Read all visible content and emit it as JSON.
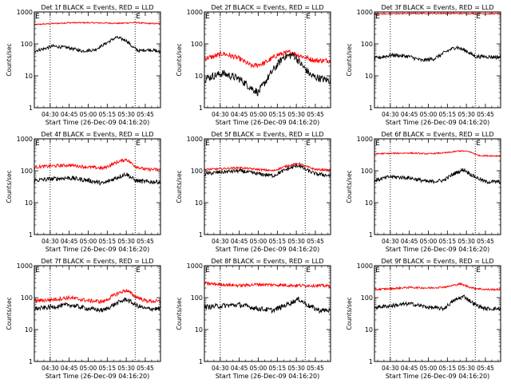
{
  "colors": {
    "events": "#000000",
    "lld": "#ff0000",
    "axis": "#000000",
    "background": "#ffffff"
  },
  "chart_data": [
    {
      "type": "line",
      "title": "Det 1f BLACK = Events, RED = LLD",
      "xlabel": "Start Time (26-Dec-09 04:16:20)",
      "ylabel": "Counts/sec",
      "x_tick_labels": [
        "04:30",
        "04:45",
        "05:00",
        "05:15",
        "05:30",
        "05:45"
      ],
      "x_ticks_min": [
        30,
        45,
        60,
        75,
        90,
        105
      ],
      "xlim_min": [
        17.5,
        117
      ],
      "ylog": true,
      "ylim": [
        1,
        1000
      ],
      "y_tick_labels": [
        "1",
        "10",
        "100",
        "1000"
      ],
      "dotted_lines_min": [
        30,
        97
      ],
      "flags": [
        "E",
        "E"
      ],
      "flags_min": [
        17.6,
        97
      ],
      "series": [
        {
          "color": "red",
          "min": [
            17.5,
            30,
            45,
            60,
            75,
            85,
            97,
            105,
            117
          ],
          "values": [
            400,
            430,
            460,
            460,
            450,
            440,
            470,
            440,
            430
          ],
          "noise": 0.02
        },
        {
          "color": "black",
          "min": [
            17.5,
            25,
            32,
            45,
            55,
            65,
            75,
            82,
            90,
            95,
            100,
            105,
            110,
            117
          ],
          "values": [
            60,
            70,
            85,
            75,
            60,
            65,
            110,
            160,
            130,
            80,
            60,
            65,
            65,
            55
          ],
          "noise": 0.05
        }
      ]
    },
    {
      "type": "line",
      "title": "Det 2f BLACK = Events, RED = LLD",
      "xlabel": "Start Time (26-Dec-09 04:16:20)",
      "ylabel": "Counts/sec",
      "x_tick_labels": [
        "04:30",
        "04:45",
        "05:00",
        "05:15",
        "05:30",
        "05:45"
      ],
      "x_ticks_min": [
        30,
        45,
        60,
        75,
        90,
        105
      ],
      "xlim_min": [
        17.5,
        117
      ],
      "ylog": true,
      "ylim": [
        1,
        1000
      ],
      "y_tick_labels": [
        "1",
        "10",
        "100",
        "1000"
      ],
      "dotted_lines_min": [
        30,
        97
      ],
      "flags": [
        "E",
        "E"
      ],
      "flags_min": [
        17.6,
        97
      ],
      "series": [
        {
          "color": "red",
          "min": [
            17.5,
            25,
            32,
            45,
            55,
            65,
            75,
            85,
            95,
            105,
            117
          ],
          "values": [
            35,
            40,
            50,
            35,
            20,
            25,
            45,
            55,
            40,
            30,
            30
          ],
          "noise": 0.08
        },
        {
          "color": "black",
          "min": [
            17.5,
            25,
            32,
            45,
            55,
            60,
            70,
            80,
            88,
            95,
            102,
            110,
            117
          ],
          "values": [
            8,
            10,
            12,
            8,
            4,
            3,
            12,
            40,
            45,
            20,
            10,
            8,
            7
          ],
          "noise": 0.12
        }
      ]
    },
    {
      "type": "line",
      "title": "Det 3f BLACK = Events, RED = LLD",
      "xlabel": "Start Time (26-Dec-09 04:16:20)",
      "ylabel": "Counts/sec",
      "x_tick_labels": [
        "04:30",
        "04:45",
        "05:00",
        "05:15",
        "05:30",
        "05:45"
      ],
      "x_ticks_min": [
        30,
        45,
        60,
        75,
        90,
        105
      ],
      "xlim_min": [
        17.5,
        117
      ],
      "ylog": true,
      "ylim": [
        1,
        1000
      ],
      "y_tick_labels": [
        "1",
        "10",
        "100",
        "1000"
      ],
      "dotted_lines_min": [
        30,
        97
      ],
      "flags": [
        "E",
        "E"
      ],
      "flags_min": [
        17.6,
        97
      ],
      "series": [
        {
          "color": "red",
          "min": [
            17.5,
            60,
            117
          ],
          "values": [
            870,
            900,
            880
          ],
          "noise": 0.02
        },
        {
          "color": "black",
          "min": [
            17.5,
            25,
            32,
            45,
            55,
            65,
            75,
            82,
            90,
            97,
            105,
            117
          ],
          "values": [
            35,
            40,
            45,
            40,
            30,
            35,
            60,
            80,
            60,
            40,
            40,
            38
          ],
          "noise": 0.06
        }
      ]
    },
    {
      "type": "line",
      "title": "Det 4f BLACK = Events, RED = LLD",
      "xlabel": "Start Time (26-Dec-09 04:16:20)",
      "ylabel": "Counts/sec",
      "x_tick_labels": [
        "04:30",
        "04:45",
        "05:00",
        "05:15",
        "05:30",
        "05:45"
      ],
      "x_ticks_min": [
        30,
        45,
        60,
        75,
        90,
        105
      ],
      "xlim_min": [
        17.5,
        117
      ],
      "ylog": true,
      "ylim": [
        1,
        1000
      ],
      "y_tick_labels": [
        "1",
        "10",
        "100",
        "1000"
      ],
      "dotted_lines_min": [
        30,
        97
      ],
      "flags": [
        "E",
        "E"
      ],
      "flags_min": [
        17.6,
        97
      ],
      "series": [
        {
          "color": "red",
          "min": [
            17.5,
            30,
            45,
            60,
            72,
            82,
            90,
            97,
            105,
            117
          ],
          "values": [
            130,
            140,
            150,
            130,
            120,
            180,
            230,
            140,
            110,
            110
          ],
          "noise": 0.05
        },
        {
          "color": "black",
          "min": [
            17.5,
            30,
            45,
            60,
            72,
            82,
            90,
            97,
            105,
            117
          ],
          "values": [
            50,
            55,
            60,
            50,
            40,
            60,
            80,
            50,
            45,
            45
          ],
          "noise": 0.07
        }
      ]
    },
    {
      "type": "line",
      "title": "Det 5f BLACK = Events, RED = LLD",
      "xlabel": "Start Time (26-Dec-09 04:16:20)",
      "ylabel": "Counts/sec",
      "x_tick_labels": [
        "04:30",
        "04:45",
        "05:00",
        "05:15",
        "05:30",
        "05:45"
      ],
      "x_ticks_min": [
        30,
        45,
        60,
        75,
        90,
        105
      ],
      "xlim_min": [
        17.5,
        117
      ],
      "ylog": true,
      "ylim": [
        1,
        1000
      ],
      "y_tick_labels": [
        "1",
        "10",
        "100",
        "1000"
      ],
      "dotted_lines_min": [
        30,
        97
      ],
      "flags": [
        "E",
        "E"
      ],
      "flags_min": [
        17.6,
        97
      ],
      "series": [
        {
          "color": "red",
          "min": [
            17.5,
            30,
            45,
            60,
            72,
            82,
            92,
            97,
            105,
            117
          ],
          "values": [
            110,
            115,
            125,
            110,
            100,
            140,
            170,
            140,
            110,
            105
          ],
          "noise": 0.03
        },
        {
          "color": "black",
          "min": [
            17.5,
            30,
            45,
            60,
            72,
            82,
            92,
            97,
            105,
            117
          ],
          "values": [
            80,
            90,
            100,
            80,
            70,
            110,
            150,
            110,
            80,
            70
          ],
          "noise": 0.06
        }
      ]
    },
    {
      "type": "line",
      "title": "Det 6f BLACK = Events, RED = LLD",
      "xlabel": "Start Time (26-Dec-09 04:16:20)",
      "ylabel": "Counts/sec",
      "x_tick_labels": [
        "04:30",
        "04:45",
        "05:00",
        "05:15",
        "05:30",
        "05:45"
      ],
      "x_ticks_min": [
        30,
        45,
        60,
        75,
        90,
        105
      ],
      "xlim_min": [
        17.5,
        117
      ],
      "ylog": true,
      "ylim": [
        1,
        1000
      ],
      "y_tick_labels": [
        "1",
        "10",
        "100",
        "1000"
      ],
      "dotted_lines_min": [
        30,
        97
      ],
      "flags": [
        "E",
        "E"
      ],
      "flags_min": [
        17.6,
        97
      ],
      "series": [
        {
          "color": "red",
          "min": [
            17.5,
            45,
            60,
            75,
            85,
            92,
            100,
            117
          ],
          "values": [
            340,
            360,
            340,
            370,
            420,
            400,
            300,
            290
          ],
          "noise": 0.02
        },
        {
          "color": "black",
          "min": [
            17.5,
            30,
            45,
            60,
            72,
            80,
            88,
            95,
            105,
            117
          ],
          "values": [
            50,
            65,
            60,
            45,
            50,
            80,
            110,
            70,
            45,
            45
          ],
          "noise": 0.06
        }
      ]
    },
    {
      "type": "line",
      "title": "Det 7f BLACK = Events, RED = LLD",
      "xlabel": "Start Time (26-Dec-09 04:16:20)",
      "ylabel": "Counts/sec",
      "x_tick_labels": [
        "04:30",
        "04:45",
        "05:00",
        "05:15",
        "05:30",
        "05:45"
      ],
      "x_ticks_min": [
        30,
        45,
        60,
        75,
        90,
        105
      ],
      "xlim_min": [
        17.5,
        117
      ],
      "ylog": true,
      "ylim": [
        1,
        1000
      ],
      "y_tick_labels": [
        "1",
        "10",
        "100",
        "1000"
      ],
      "dotted_lines_min": [
        30,
        97
      ],
      "flags": [
        "E",
        "E"
      ],
      "flags_min": [
        17.6,
        97
      ],
      "series": [
        {
          "color": "red",
          "min": [
            17.5,
            30,
            45,
            60,
            72,
            82,
            90,
            97,
            105,
            117
          ],
          "values": [
            80,
            85,
            100,
            80,
            75,
            130,
            170,
            110,
            80,
            75
          ],
          "noise": 0.06
        },
        {
          "color": "black",
          "min": [
            17.5,
            30,
            45,
            60,
            72,
            82,
            90,
            97,
            105,
            117
          ],
          "values": [
            45,
            50,
            60,
            45,
            40,
            65,
            90,
            60,
            45,
            45
          ],
          "noise": 0.07
        }
      ]
    },
    {
      "type": "line",
      "title": "Det 8f BLACK = Events, RED = LLD",
      "xlabel": "Start Time (26-Dec-09 04:16:20)",
      "ylabel": "Counts/sec",
      "x_tick_labels": [
        "04:30",
        "04:45",
        "05:00",
        "05:15",
        "05:30",
        "05:45"
      ],
      "x_ticks_min": [
        30,
        45,
        60,
        75,
        90,
        105
      ],
      "xlim_min": [
        17.5,
        117
      ],
      "ylog": true,
      "ylim": [
        1,
        1000
      ],
      "y_tick_labels": [
        "1",
        "10",
        "100",
        "1000"
      ],
      "dotted_lines_min": [
        30,
        97
      ],
      "flags": [
        "E",
        "E"
      ],
      "flags_min": [
        17.6,
        97
      ],
      "series": [
        {
          "color": "red",
          "min": [
            17.5,
            30,
            45,
            60,
            75,
            90,
            105,
            117
          ],
          "values": [
            280,
            260,
            240,
            260,
            250,
            240,
            240,
            230
          ],
          "noise": 0.05
        },
        {
          "color": "black",
          "min": [
            17.5,
            30,
            45,
            60,
            72,
            82,
            92,
            100,
            108,
            117
          ],
          "values": [
            50,
            55,
            60,
            45,
            40,
            60,
            90,
            55,
            40,
            40
          ],
          "noise": 0.08
        }
      ]
    },
    {
      "type": "line",
      "title": "Det 9f BLACK = Events, RED = LLD",
      "xlabel": "Start Time (26-Dec-09 04:16:20)",
      "ylabel": "Counts/sec",
      "x_tick_labels": [
        "04:30",
        "04:45",
        "05:00",
        "05:15",
        "05:30",
        "05:45"
      ],
      "x_ticks_min": [
        30,
        45,
        60,
        75,
        90,
        105
      ],
      "xlim_min": [
        17.5,
        117
      ],
      "ylog": true,
      "ylim": [
        1,
        1000
      ],
      "y_tick_labels": [
        "1",
        "10",
        "100",
        "1000"
      ],
      "dotted_lines_min": [
        30,
        97
      ],
      "flags": [
        "E",
        "E"
      ],
      "flags_min": [
        17.6,
        97
      ],
      "series": [
        {
          "color": "red",
          "min": [
            17.5,
            30,
            45,
            60,
            75,
            85,
            95,
            105,
            117
          ],
          "values": [
            180,
            190,
            210,
            200,
            220,
            270,
            200,
            180,
            180
          ],
          "noise": 0.03
        },
        {
          "color": "black",
          "min": [
            17.5,
            30,
            45,
            60,
            72,
            80,
            88,
            97,
            105,
            117
          ],
          "values": [
            50,
            55,
            65,
            50,
            45,
            80,
            110,
            60,
            45,
            45
          ],
          "noise": 0.06
        }
      ]
    }
  ]
}
